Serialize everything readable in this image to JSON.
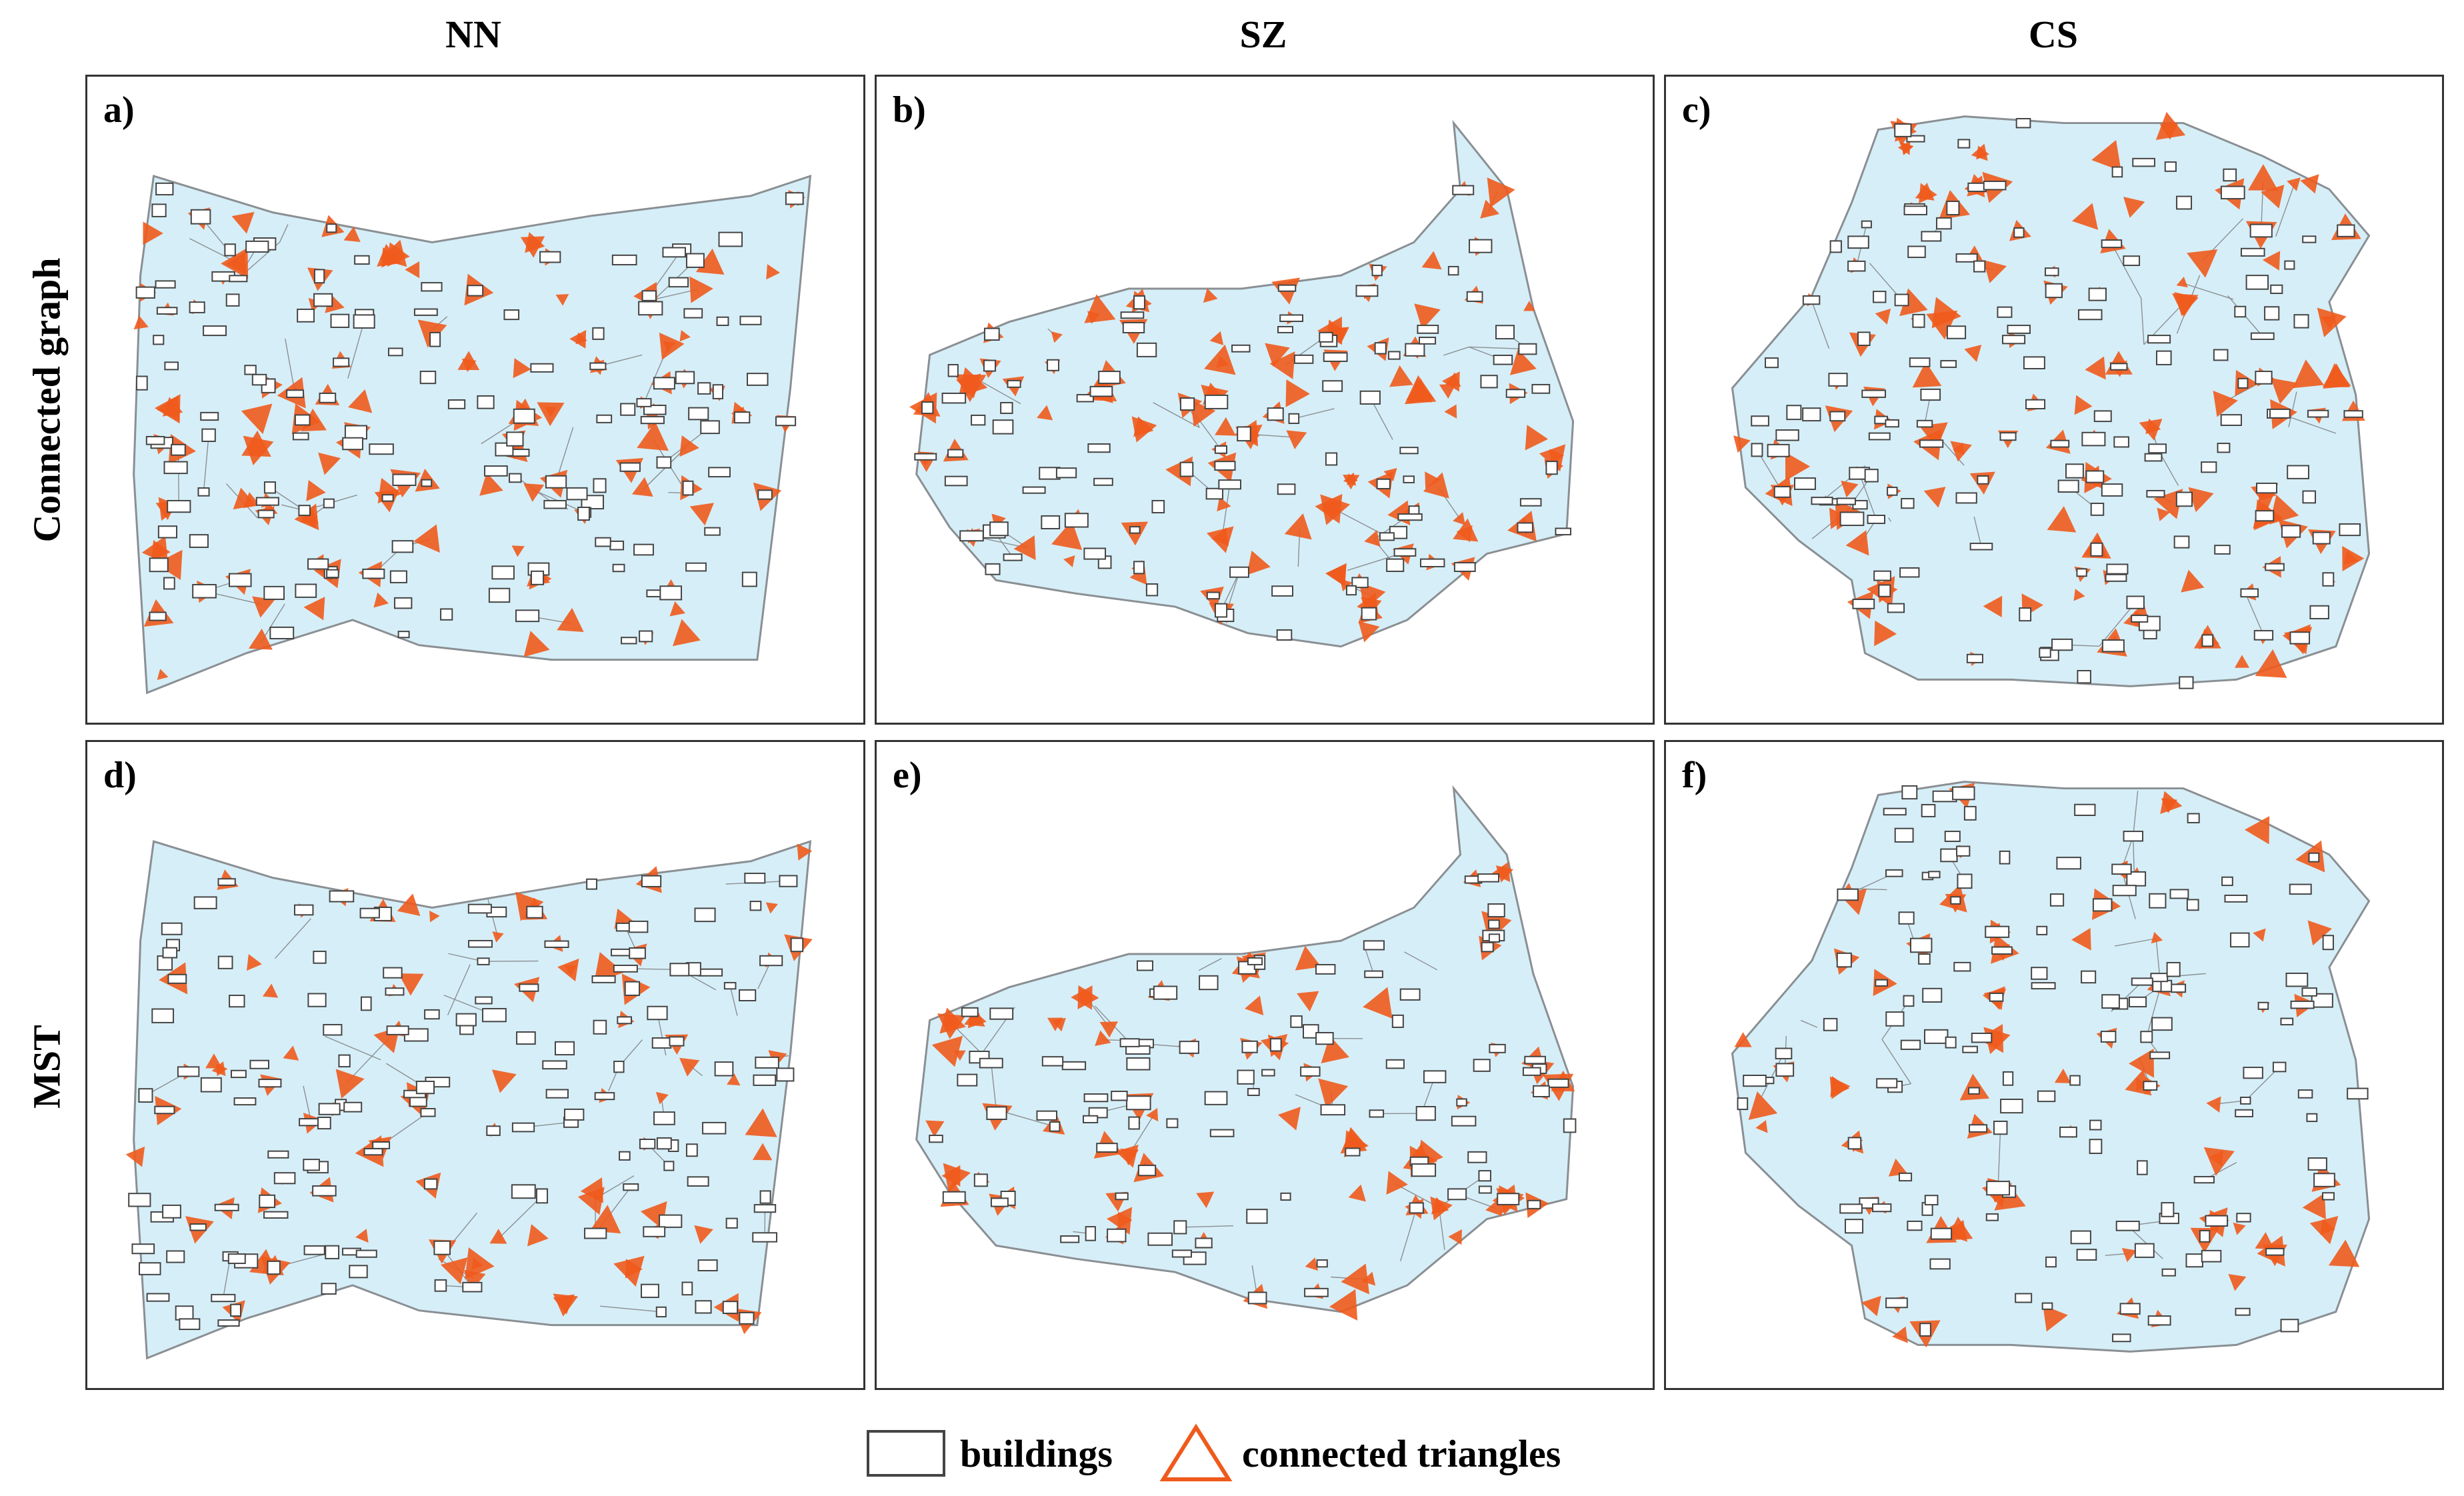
{
  "columns": [
    "NN",
    "SZ",
    "CS"
  ],
  "rows": [
    "Connected graph",
    "MST"
  ],
  "panels": [
    {
      "label": "a)",
      "region": "NN",
      "variant": "Connected graph"
    },
    {
      "label": "b)",
      "region": "SZ",
      "variant": "Connected graph"
    },
    {
      "label": "c)",
      "region": "CS",
      "variant": "Connected graph"
    },
    {
      "label": "d)",
      "region": "NN",
      "variant": "MST"
    },
    {
      "label": "e)",
      "region": "SZ",
      "variant": "MST"
    },
    {
      "label": "f)",
      "region": "CS",
      "variant": "MST"
    }
  ],
  "legend": {
    "buildings": "buildings",
    "connected_triangles": "connected triangles"
  },
  "colors": {
    "background_fill": "#d6eef7",
    "triangle_edge": "#8a8f93",
    "connected_triangle": "#ef5a1c",
    "building_fill": "#ffffff",
    "building_stroke": "#444444",
    "panel_border": "#333333"
  }
}
